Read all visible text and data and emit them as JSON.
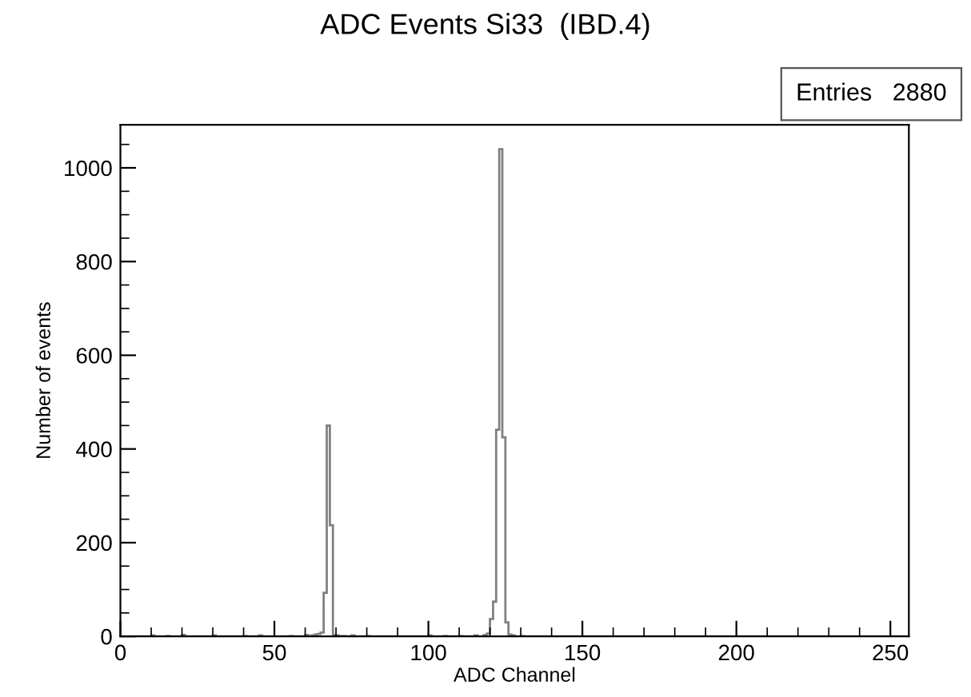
{
  "chart_data": {
    "type": "histogram",
    "title": "ADC Events Si33  (IBD.4)",
    "xlabel": "ADC Channel",
    "ylabel": "Number of events",
    "annotations": [
      "Entries   2880"
    ],
    "bins": [
      0,
      1,
      2,
      3,
      4,
      5,
      6,
      7,
      8,
      9,
      10,
      11,
      12,
      13,
      14,
      15,
      16,
      17,
      18,
      19,
      20,
      21,
      22,
      23,
      24,
      25,
      26,
      27,
      28,
      29,
      30,
      31,
      32,
      33,
      34,
      35,
      36,
      37,
      38,
      39,
      40,
      41,
      42,
      43,
      44,
      45,
      46,
      47,
      48,
      49,
      50,
      51,
      52,
      53,
      54,
      55,
      56,
      57,
      58,
      59,
      60,
      61,
      62,
      63,
      64,
      65,
      66,
      67,
      68,
      69,
      70,
      71,
      72,
      73,
      74,
      75,
      76,
      77,
      78,
      79,
      80,
      81,
      82,
      83,
      84,
      85,
      86,
      87,
      88,
      89,
      90,
      91,
      92,
      93,
      94,
      95,
      96,
      97,
      98,
      99,
      100,
      101,
      102,
      103,
      104,
      105,
      106,
      107,
      108,
      109,
      110,
      111,
      112,
      113,
      114,
      115,
      116,
      117,
      118,
      119,
      120,
      121,
      122,
      123,
      124,
      125,
      126,
      127,
      128,
      129,
      130,
      131,
      132,
      133,
      134,
      135,
      136,
      137,
      138,
      139,
      140,
      141,
      142,
      143,
      144,
      145,
      146,
      147,
      148,
      149,
      150,
      151,
      152,
      153,
      154,
      155,
      156,
      157,
      158,
      159,
      160,
      161,
      162,
      163,
      164,
      165,
      166,
      167,
      168,
      169,
      170,
      171,
      172,
      173,
      174,
      175,
      176,
      177,
      178,
      179,
      180,
      181,
      182,
      183,
      184,
      185,
      186,
      187,
      188,
      189,
      190,
      191,
      192,
      193,
      194,
      195,
      196,
      197,
      198,
      199,
      200,
      201,
      202,
      203,
      204,
      205,
      206,
      207,
      208,
      209,
      210,
      211,
      212,
      213,
      214,
      215,
      216,
      217,
      218,
      219,
      220,
      221,
      222,
      223,
      224,
      225,
      226,
      227,
      228,
      229,
      230,
      231,
      232,
      233,
      234,
      235,
      236,
      237,
      238,
      239,
      240,
      241,
      242,
      243,
      244,
      245,
      246,
      247,
      248,
      249,
      250,
      251,
      252,
      253,
      254,
      255,
      256
    ],
    "values": [
      0,
      0,
      0,
      0,
      0,
      0,
      0,
      0,
      0,
      0,
      2,
      0,
      0,
      0,
      0,
      1,
      0,
      0,
      0,
      0,
      3,
      0,
      0,
      0,
      0,
      0,
      0,
      0,
      0,
      0,
      2,
      0,
      0,
      0,
      0,
      0,
      0,
      0,
      0,
      0,
      1,
      0,
      0,
      0,
      0,
      2,
      0,
      0,
      0,
      0,
      0,
      0,
      0,
      0,
      0,
      1,
      0,
      0,
      0,
      0,
      3,
      0,
      2,
      4,
      5,
      8,
      93,
      450,
      237,
      3,
      2,
      0,
      1,
      0,
      0,
      2,
      0,
      0,
      0,
      0,
      1,
      0,
      0,
      0,
      0,
      0,
      0,
      0,
      0,
      0,
      0,
      0,
      0,
      0,
      0,
      0,
      0,
      0,
      0,
      0,
      2,
      0,
      0,
      0,
      0,
      1,
      0,
      0,
      0,
      0,
      1,
      0,
      0,
      0,
      0,
      2,
      0,
      0,
      3,
      6,
      37,
      74,
      441,
      1040,
      425,
      30,
      4,
      2,
      0,
      0,
      1,
      0,
      0,
      0,
      0,
      0,
      0,
      0,
      0,
      0,
      0,
      0,
      0,
      0,
      0,
      0,
      0,
      0,
      0,
      0,
      0,
      0,
      0,
      0,
      0,
      0,
      0,
      0,
      0,
      0,
      0,
      0,
      0,
      0,
      0,
      0,
      0,
      0,
      0,
      0,
      0,
      0,
      0,
      0,
      0,
      0,
      0,
      0,
      0,
      0,
      0,
      0,
      0,
      0,
      0,
      0,
      0,
      0,
      0,
      0,
      0,
      0,
      0,
      0,
      0,
      0,
      0,
      0,
      0,
      0,
      0,
      0,
      0,
      0,
      0,
      0,
      0,
      0,
      0,
      0,
      0,
      0,
      0,
      0,
      0,
      0,
      0,
      0,
      0,
      0,
      0,
      0,
      0,
      0,
      0,
      0,
      0,
      0,
      0,
      0,
      0,
      0,
      0,
      0,
      0,
      0,
      0,
      0,
      0,
      0,
      0,
      0,
      0,
      0,
      0,
      0,
      0,
      0,
      0,
      0,
      0,
      0,
      0,
      0,
      0,
      0
    ],
    "color": "#808080",
    "xlim": [
      0,
      256
    ],
    "ylim": [
      0,
      1092
    ],
    "xticks": [
      0,
      50,
      100,
      150,
      200,
      250
    ],
    "yticks": [
      0,
      200,
      400,
      600,
      800,
      1000
    ],
    "grid": false
  }
}
